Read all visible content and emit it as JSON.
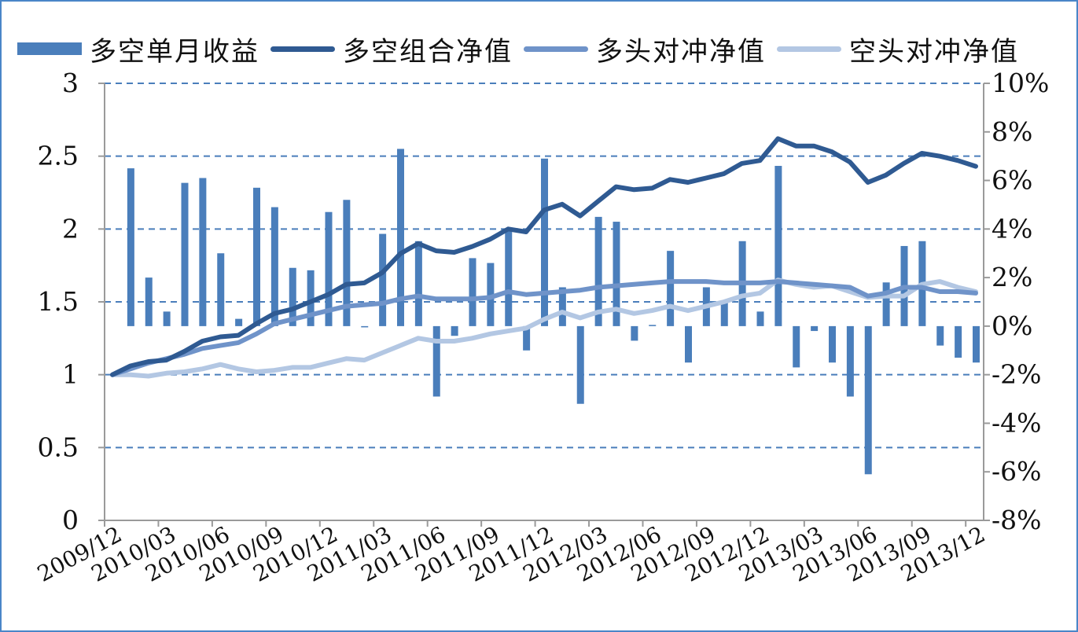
{
  "chart_data": {
    "type": "bar+line",
    "legend": [
      "多空单月收益",
      "多空组合净值",
      "多头对冲净值",
      "空头对冲净值"
    ],
    "colors": {
      "bar": "#4a7ebb",
      "long_short_nav": "#2f5a92",
      "long_hedge_nav": "#6f93c9",
      "short_hedge_nav": "#b3c7e3",
      "grid": "#4a7ebb",
      "axis": "#9a9a9a"
    },
    "left_axis": {
      "min": 0,
      "max": 3,
      "ticks": [
        "0",
        "0.5",
        "1",
        "1.5",
        "2",
        "2.5",
        "3"
      ]
    },
    "right_axis": {
      "min": -8,
      "max": 10,
      "unit": "%",
      "ticks": [
        "-8%",
        "-6%",
        "-4%",
        "-2%",
        "0%",
        "2%",
        "4%",
        "6%",
        "8%",
        "10%"
      ]
    },
    "x_tick_labels": [
      "2009/12",
      "2010/03",
      "2010/06",
      "2010/09",
      "2010/12",
      "2011/03",
      "2011/06",
      "2011/09",
      "2011/12",
      "2012/03",
      "2012/06",
      "2012/09",
      "2012/12",
      "2013/03",
      "2013/06",
      "2013/09",
      "2013/12"
    ],
    "monthly_return_pct": [
      0,
      6.5,
      2.0,
      0.6,
      5.9,
      6.1,
      3.0,
      0.3,
      5.7,
      4.9,
      2.4,
      2.3,
      4.7,
      5.2,
      -0.05,
      3.8,
      7.3,
      3.5,
      -2.9,
      -0.4,
      2.8,
      2.6,
      3.9,
      -1.0,
      6.9,
      1.6,
      -3.2,
      4.5,
      4.3,
      -0.6,
      0.05,
      3.1,
      -1.5,
      1.6,
      1.0,
      3.5,
      0.6,
      6.6,
      -1.7,
      -0.2,
      -1.5,
      -2.9,
      -6.1,
      1.8,
      3.3,
      3.5,
      -0.8,
      -1.3,
      -1.5
    ],
    "series": [
      {
        "name": "多空组合净值",
        "values": [
          1.0,
          1.06,
          1.09,
          1.1,
          1.16,
          1.23,
          1.26,
          1.27,
          1.35,
          1.42,
          1.45,
          1.5,
          1.55,
          1.62,
          1.63,
          1.7,
          1.83,
          1.9,
          1.85,
          1.84,
          1.88,
          1.93,
          2.0,
          1.98,
          2.13,
          2.17,
          2.09,
          2.19,
          2.29,
          2.27,
          2.28,
          2.34,
          2.32,
          2.35,
          2.38,
          2.45,
          2.47,
          2.62,
          2.57,
          2.57,
          2.53,
          2.46,
          2.32,
          2.37,
          2.45,
          2.52,
          2.5,
          2.47,
          2.43
        ]
      },
      {
        "name": "多头对冲净值",
        "values": [
          1.0,
          1.04,
          1.08,
          1.11,
          1.14,
          1.18,
          1.2,
          1.22,
          1.28,
          1.35,
          1.38,
          1.41,
          1.44,
          1.47,
          1.48,
          1.49,
          1.52,
          1.54,
          1.52,
          1.52,
          1.52,
          1.53,
          1.57,
          1.55,
          1.56,
          1.57,
          1.58,
          1.6,
          1.61,
          1.62,
          1.63,
          1.64,
          1.64,
          1.64,
          1.63,
          1.63,
          1.63,
          1.64,
          1.63,
          1.62,
          1.61,
          1.6,
          1.54,
          1.56,
          1.6,
          1.6,
          1.57,
          1.57,
          1.56
        ]
      },
      {
        "name": "空头对冲净值",
        "values": [
          1.0,
          1.0,
          0.99,
          1.01,
          1.02,
          1.04,
          1.07,
          1.04,
          1.02,
          1.03,
          1.05,
          1.05,
          1.08,
          1.11,
          1.1,
          1.15,
          1.2,
          1.25,
          1.23,
          1.23,
          1.25,
          1.28,
          1.3,
          1.32,
          1.38,
          1.43,
          1.39,
          1.43,
          1.45,
          1.42,
          1.44,
          1.47,
          1.44,
          1.47,
          1.5,
          1.54,
          1.56,
          1.65,
          1.62,
          1.6,
          1.61,
          1.57,
          1.53,
          1.54,
          1.54,
          1.62,
          1.64,
          1.6,
          1.57
        ]
      }
    ]
  }
}
